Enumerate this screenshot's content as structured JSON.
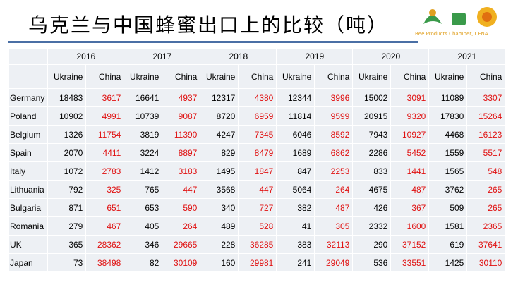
{
  "header": {
    "title": "乌克兰与中国蜂蜜出口上的比较（吨）",
    "logo_text": "Bee Products Chamber, CFNA"
  },
  "table": {
    "years": [
      "2016",
      "2017",
      "2018",
      "2019",
      "2020",
      "2021"
    ],
    "subheaders": [
      "Ukraine",
      "China"
    ],
    "rows": [
      {
        "country": "Germany",
        "values": [
          18483,
          3617,
          16641,
          4937,
          12317,
          4380,
          12344,
          3996,
          15002,
          3091,
          11089,
          3307
        ]
      },
      {
        "country": "Poland",
        "values": [
          10902,
          4991,
          10739,
          9087,
          8720,
          6959,
          11814,
          9599,
          20915,
          9320,
          17830,
          15264
        ]
      },
      {
        "country": "Belgium",
        "values": [
          1326,
          11754,
          3819,
          11390,
          4247,
          7345,
          6046,
          8592,
          7943,
          10927,
          4468,
          16123
        ]
      },
      {
        "country": "Spain",
        "values": [
          2070,
          4411,
          3224,
          8897,
          829,
          8479,
          1689,
          6862,
          2286,
          5452,
          1559,
          5517
        ]
      },
      {
        "country": "Italy",
        "values": [
          1072,
          2783,
          1412,
          3183,
          1495,
          1847,
          847,
          2253,
          833,
          1441,
          1565,
          548
        ]
      },
      {
        "country": "Lithuania",
        "values": [
          792,
          325,
          765,
          447,
          3568,
          447,
          5064,
          264,
          4675,
          487,
          3762,
          265
        ]
      },
      {
        "country": "Bulgaria",
        "values": [
          871,
          651,
          653,
          590,
          340,
          727,
          382,
          487,
          426,
          367,
          509,
          265
        ]
      },
      {
        "country": "Romania",
        "values": [
          279,
          467,
          405,
          264,
          489,
          528,
          41,
          305,
          2332,
          1600,
          1581,
          2365
        ]
      },
      {
        "country": "UK",
        "values": [
          365,
          28362,
          346,
          29665,
          228,
          36285,
          383,
          32113,
          290,
          37152,
          619,
          37641
        ]
      },
      {
        "country": "Japan",
        "values": [
          73,
          38498,
          82,
          30109,
          160,
          29981,
          241,
          29049,
          536,
          33551,
          1425,
          30110
        ]
      }
    ]
  }
}
